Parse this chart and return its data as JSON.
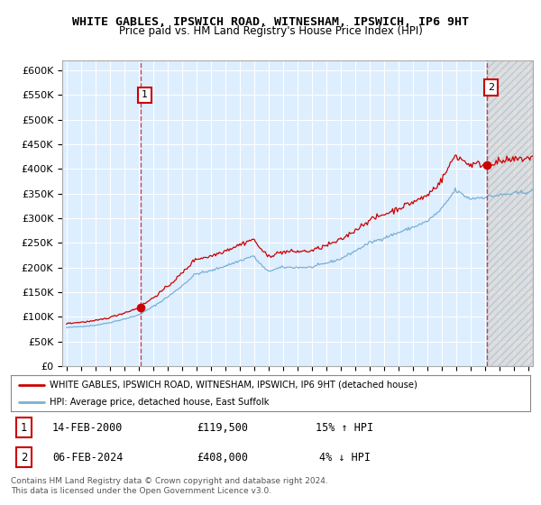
{
  "title": "WHITE GABLES, IPSWICH ROAD, WITNESHAM, IPSWICH, IP6 9HT",
  "subtitle": "Price paid vs. HM Land Registry's House Price Index (HPI)",
  "ylabel_ticks": [
    "£0",
    "£50K",
    "£100K",
    "£150K",
    "£200K",
    "£250K",
    "£300K",
    "£350K",
    "£400K",
    "£450K",
    "£500K",
    "£550K",
    "£600K"
  ],
  "ytick_values": [
    0,
    50000,
    100000,
    150000,
    200000,
    250000,
    300000,
    350000,
    400000,
    450000,
    500000,
    550000,
    600000
  ],
  "ylim": [
    0,
    620000
  ],
  "xlim_left": 1994.7,
  "xlim_right": 2027.3,
  "background_color": "#ffffff",
  "plot_bg_color": "#ddeeff",
  "plot_bg_color_hatch": "#e8e8e8",
  "grid_color": "#ffffff",
  "red_line_color": "#cc0000",
  "blue_line_color": "#7ab0d4",
  "sale1_year": 2000.12,
  "sale1_price": 119500,
  "sale1_label": "1",
  "sale2_year": 2024.09,
  "sale2_price": 408000,
  "sale2_label": "2",
  "legend_red": "WHITE GABLES, IPSWICH ROAD, WITNESHAM, IPSWICH, IP6 9HT (detached house)",
  "legend_blue": "HPI: Average price, detached house, East Suffolk",
  "annotation1_date": "14-FEB-2000",
  "annotation1_price": "£119,500",
  "annotation1_hpi": "15% ↑ HPI",
  "annotation2_date": "06-FEB-2024",
  "annotation2_price": "£408,000",
  "annotation2_hpi": "4% ↓ HPI",
  "footer": "Contains HM Land Registry data © Crown copyright and database right 2024.\nThis data is licensed under the Open Government Licence v3.0."
}
